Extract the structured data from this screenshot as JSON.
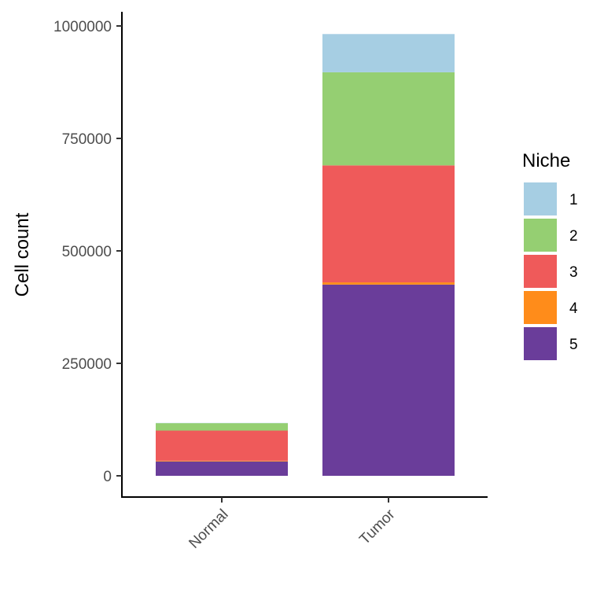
{
  "chart_data": {
    "type": "bar",
    "stacked": true,
    "categories": [
      "Normal",
      "Tumor"
    ],
    "series": [
      {
        "name": "5",
        "color": "#6a3d9a",
        "values": [
          32000,
          425000
        ]
      },
      {
        "name": "4",
        "color": "#ff8c1a",
        "values": [
          1500,
          5000
        ]
      },
      {
        "name": "3",
        "color": "#ef5a5a",
        "values": [
          67000,
          260000
        ]
      },
      {
        "name": "2",
        "color": "#95cf72",
        "values": [
          16500,
          207000
        ]
      },
      {
        "name": "1",
        "color": "#a6cee3",
        "values": [
          500,
          85000
        ]
      }
    ],
    "ylabel": "Cell count",
    "xlabel": "",
    "ylim": [
      -50000,
      1030000
    ],
    "yticks": [
      0,
      250000,
      500000,
      750000,
      1000000
    ],
    "ytick_labels": [
      "0",
      "250000",
      "500000",
      "750000",
      "1000000"
    ],
    "grid": false,
    "legend": {
      "title": "Niche",
      "placement": "right",
      "items": [
        {
          "label": "1",
          "color": "#a6cee3"
        },
        {
          "label": "2",
          "color": "#95cf72"
        },
        {
          "label": "3",
          "color": "#ef5a5a"
        },
        {
          "label": "4",
          "color": "#ff8c1a"
        },
        {
          "label": "5",
          "color": "#6a3d9a"
        }
      ]
    }
  }
}
